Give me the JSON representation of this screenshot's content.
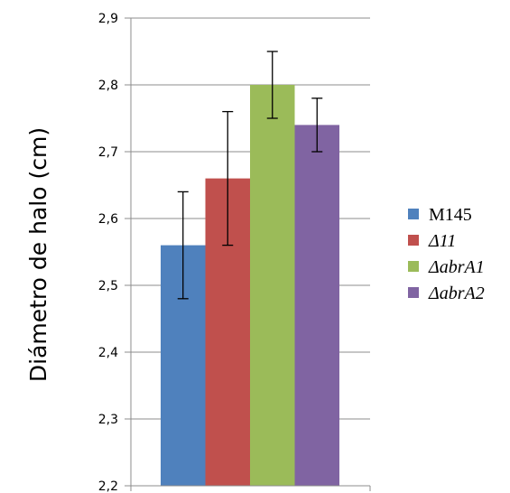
{
  "chart_data": {
    "type": "bar",
    "title": "",
    "xlabel": "",
    "ylabel": "Diámetro de halo (cm)",
    "ylim": [
      2.2,
      2.9
    ],
    "yticks": [
      2.2,
      2.3,
      2.4,
      2.5,
      2.6,
      2.7,
      2.8,
      2.9
    ],
    "ytick_labels": [
      "2,2",
      "2,3",
      "2,4",
      "2,5",
      "2,6",
      "2,7",
      "2,8",
      "2,9"
    ],
    "grid": true,
    "legend_position": "right",
    "series": [
      {
        "name": "M145",
        "value": 2.56,
        "error_low": 2.48,
        "error_high": 2.64,
        "color": "#4F81BD",
        "italic": false
      },
      {
        "name": "Δ11",
        "value": 2.66,
        "error_low": 2.56,
        "error_high": 2.76,
        "color": "#C0504D",
        "italic": true
      },
      {
        "name": "ΔabrA1",
        "value": 2.8,
        "error_low": 2.75,
        "error_high": 2.85,
        "color": "#9BBB59",
        "italic": true
      },
      {
        "name": "ΔabrA2",
        "value": 2.74,
        "error_low": 2.7,
        "error_high": 2.78,
        "color": "#8064A2",
        "italic": true
      }
    ]
  }
}
